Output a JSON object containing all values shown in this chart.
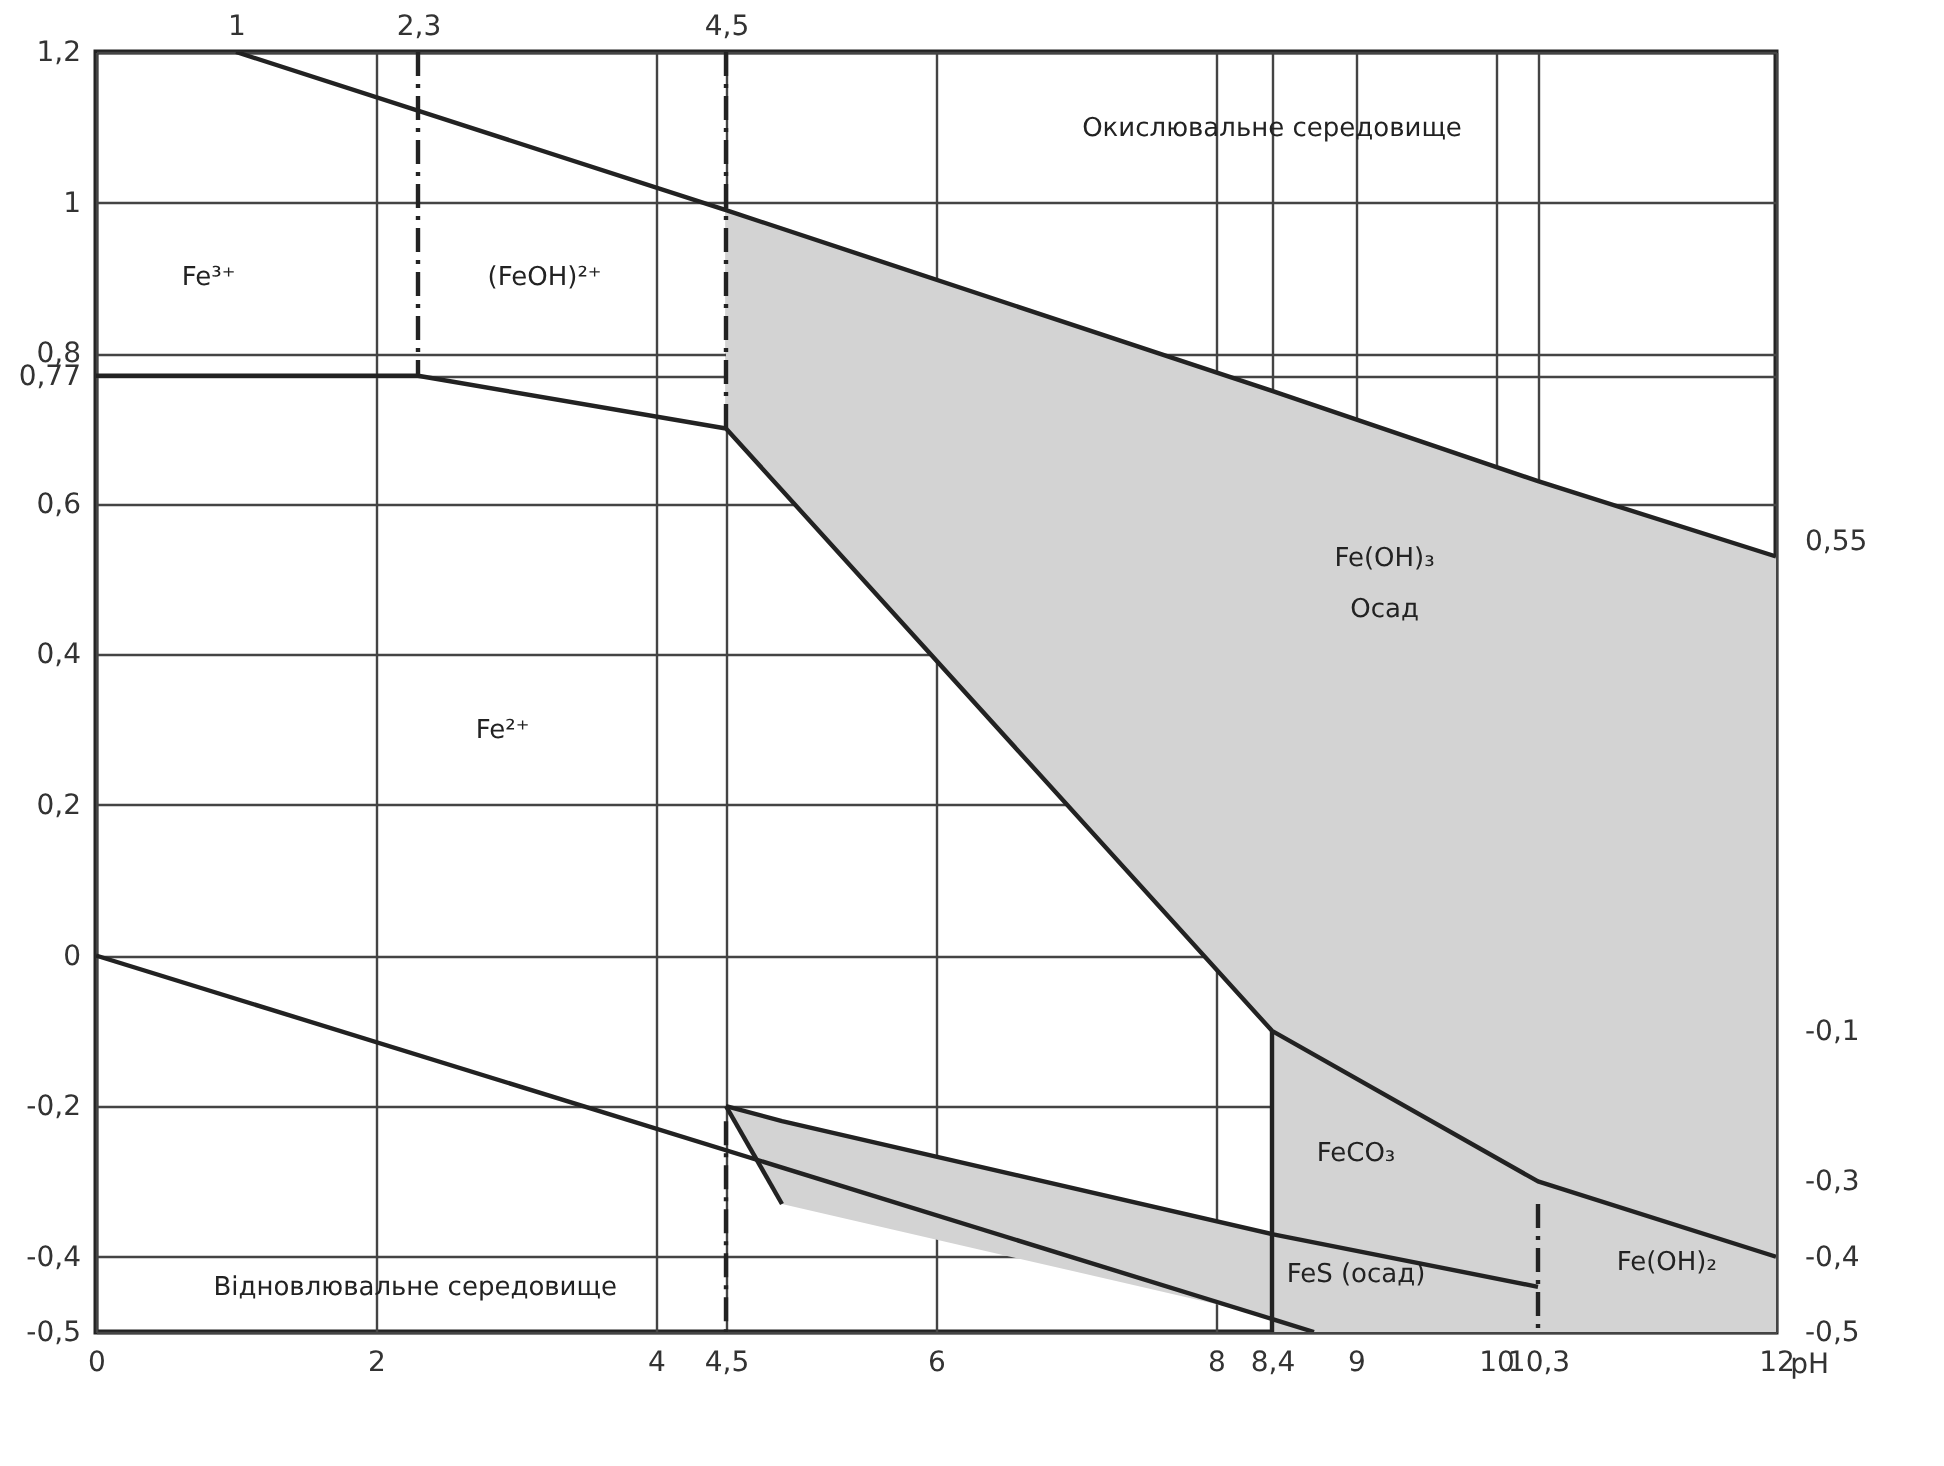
{
  "chart_data": {
    "type": "line",
    "xlabel": "pH",
    "xlim": [
      0,
      12
    ],
    "xticks": [
      0,
      2,
      4,
      {
        "value": 4.5,
        "label": "4,5"
      },
      6,
      8,
      {
        "value": 8.4,
        "label": "8,4"
      },
      9,
      10,
      {
        "value": 10.3,
        "label": "10,3"
      },
      12
    ],
    "x2lim": [
      0,
      12
    ],
    "x2ticks": [
      1,
      {
        "value": 2.3,
        "label": "2,3"
      },
      {
        "value": 4.5,
        "label": "4,5"
      }
    ],
    "ylim": [
      -0.5,
      1.2
    ],
    "yticks": [
      {
        "value": 1.2,
        "label": "1,2"
      },
      1,
      {
        "value": 0.8,
        "label": "0,8"
      },
      {
        "value": 0.77,
        "label": "0,77"
      },
      {
        "value": 0.6,
        "label": "0,6"
      },
      {
        "value": 0.4,
        "label": "0,4"
      },
      {
        "value": 0.2,
        "label": "0,2"
      },
      0,
      {
        "value": -0.2,
        "label": "-0,2"
      },
      {
        "value": -0.4,
        "label": "-0,4"
      },
      {
        "value": -0.5,
        "label": "-0,5"
      }
    ],
    "y2lim": [
      -0.5,
      1.2
    ],
    "y2ticks": [
      {
        "value": 0.55,
        "label": "0,55"
      },
      {
        "value": -0.1,
        "label": "-0,1"
      },
      {
        "value": -0.3,
        "label": "-0,3"
      },
      {
        "value": -0.4,
        "label": "-0,4"
      },
      {
        "value": -0.5,
        "label": "-0,5"
      }
    ],
    "grid": true,
    "line_style": "solid",
    "series": [
      {
        "color": "#222222",
        "x": [
          1,
          4.5,
          8.4,
          10.3,
          12
        ],
        "values": [
          1.2,
          0.99,
          0.75,
          0.63,
          0.53
        ],
        "lower": [
          null,
          0.7,
          -0.1,
          -0.3,
          -0.4
        ],
        "upper": [
          null,
          0.99,
          0.75,
          0.63,
          0.53
        ]
      },
      {
        "color": "#222222",
        "x": [
          0,
          2.3,
          4.5,
          8.4,
          10.3,
          12
        ],
        "values": [
          0.77,
          0.77,
          0.7,
          -0.1,
          -0.3,
          -0.4
        ],
        "lower": [
          null,
          null,
          null,
          -0.5,
          -0.5,
          -0.5
        ],
        "upper": [
          null,
          null,
          null,
          -0.1,
          -0.3,
          -0.4
        ]
      },
      {
        "color": "#222222",
        "x": [
          4.5,
          4.9,
          8.4,
          10.3
        ],
        "values": [
          -0.2,
          -0.22,
          -0.37,
          -0.44
        ],
        "lower": [
          -0.2,
          -0.33,
          -0.48,
          null
        ],
        "upper": [
          -0.2,
          -0.22,
          -0.37,
          null
        ]
      },
      {
        "color": "#222222",
        "x": [
          0,
          8.7
        ],
        "values": [
          0,
          -0.5
        ]
      },
      {
        "color": "#222222",
        "x": [
          4.5,
          4.9
        ],
        "values": [
          -0.2,
          -0.33
        ]
      },
      {
        "color": "#222222",
        "x": [
          8.4,
          8.4
        ],
        "values": [
          -0.1,
          -0.5
        ]
      },
      {
        "color": "#222222",
        "line_style": "dashed",
        "x": [
          2.3,
          2.3
        ],
        "values": [
          1.2,
          0.77
        ]
      },
      {
        "color": "#222222",
        "line_style": "dashed",
        "x": [
          4.5,
          4.5
        ],
        "values": [
          1.2,
          0.7
        ]
      },
      {
        "color": "#222222",
        "line_style": "dashed",
        "x": [
          4.5,
          4.5
        ],
        "values": [
          -0.22,
          -0.5
        ]
      },
      {
        "color": "#222222",
        "line_style": "dashed",
        "x": [
          10.3,
          10.3
        ],
        "values": [
          -0.33,
          -0.5
        ]
      }
    ],
    "annotations": [
      "Окислювальне середовище",
      "Fe³⁺",
      "(FeOH)²⁺",
      "Fe(OH)₃",
      "Осад",
      "Fe²⁺",
      "FeCO₃",
      "Fe(OH)₂",
      "FeS (осад)",
      "Відновлювальне середовище"
    ]
  }
}
